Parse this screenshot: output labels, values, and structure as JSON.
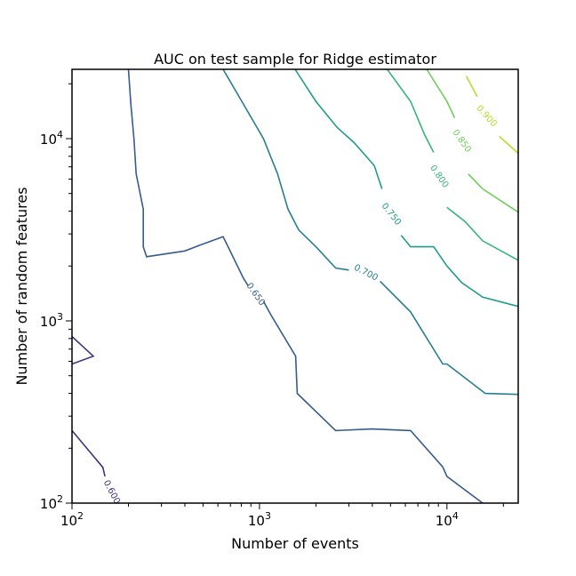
{
  "chart_data": {
    "type": "contour",
    "title": "AUC on test sample for Ridge estimator",
    "xlabel": "Number of events",
    "ylabel": "Number of random features",
    "xscale": "log",
    "yscale": "log",
    "xlim": [
      100,
      24000
    ],
    "ylim": [
      100,
      24000
    ],
    "x_ticks": [
      {
        "base": "10",
        "exp": "2"
      },
      {
        "base": "10",
        "exp": "3"
      },
      {
        "base": "10",
        "exp": "4"
      }
    ],
    "y_ticks": [
      {
        "base": "10",
        "exp": "2"
      },
      {
        "base": "10",
        "exp": "3"
      },
      {
        "base": "10",
        "exp": "4"
      }
    ],
    "grid": false,
    "levels": [
      {
        "level": "0.600",
        "color": "#46327e",
        "paths": [
          [
            [
              100,
              820
            ],
            [
              130,
              640
            ],
            [
              100,
              580
            ]
          ],
          [
            [
              100,
              250
            ],
            [
              146,
              157
            ],
            [
              150,
              140
            ]
          ]
        ],
        "label": {
          "x": 163,
          "y": 115,
          "text": "0.600",
          "angle": 62
        }
      },
      {
        "level": "0.650",
        "color": "#365c8d",
        "paths": [
          [
            [
              200,
              24000
            ],
            [
              206,
              15500
            ],
            [
              214,
              10000
            ],
            [
              220,
              6400
            ],
            [
              240,
              4100
            ],
            [
              240,
              2550
            ],
            [
              250,
              2250
            ],
            [
              400,
              2420
            ],
            [
              480,
              2600
            ],
            [
              640,
              2900
            ],
            [
              820,
              1720
            ],
            [
              870,
              1560
            ]
          ],
          [
            [
              1050,
              1280
            ],
            [
              1150,
              1080
            ],
            [
              1560,
              640
            ],
            [
              1590,
              400
            ],
            [
              2550,
              250
            ],
            [
              4000,
              255
            ],
            [
              6400,
              250
            ],
            [
              9500,
              158
            ],
            [
              10000,
              140
            ],
            [
              15500,
              100
            ]
          ]
        ],
        "label": {
          "x": 955,
          "y": 1400,
          "text": "0.650",
          "angle": 55
        }
      },
      {
        "level": "0.700",
        "color": "#277f8e",
        "paths": [
          [
            [
              640,
              24000
            ],
            [
              820,
              15500
            ],
            [
              1050,
              10000
            ],
            [
              1250,
              6400
            ],
            [
              1420,
              4100
            ],
            [
              1620,
              3150
            ],
            [
              2000,
              2550
            ],
            [
              2550,
              1950
            ],
            [
              3000,
              1900
            ]
          ],
          [
            [
              4400,
              1650
            ],
            [
              6400,
              1120
            ],
            [
              9500,
              580
            ],
            [
              10000,
              580
            ],
            [
              16000,
              400
            ],
            [
              24000,
              395
            ]
          ]
        ],
        "label": {
          "x": 3700,
          "y": 1840,
          "text": "0.700",
          "angle": 27
        }
      },
      {
        "level": "0.750",
        "color": "#1f9e89",
        "paths": [
          [
            [
              1550,
              24000
            ],
            [
              2000,
              16000
            ],
            [
              2600,
              11500
            ],
            [
              3200,
              9500
            ],
            [
              4100,
              7100
            ],
            [
              4500,
              5300
            ]
          ],
          [
            [
              5700,
              2950
            ],
            [
              6400,
              2550
            ],
            [
              8500,
              2550
            ],
            [
              10000,
              2000
            ],
            [
              12000,
              1620
            ],
            [
              15500,
              1350
            ],
            [
              24000,
              1200
            ]
          ]
        ],
        "label": {
          "x": 5050,
          "y": 3850,
          "text": "0.750",
          "angle": 52
        }
      },
      {
        "level": "0.800",
        "color": "#35b779",
        "paths": [
          [
            [
              4800,
              24000
            ],
            [
              6400,
              16000
            ],
            [
              7600,
              10500
            ],
            [
              8500,
              8400
            ]
          ],
          [
            [
              10000,
              4200
            ],
            [
              12500,
              3500
            ],
            [
              15500,
              2750
            ],
            [
              24000,
              2150
            ]
          ]
        ],
        "label": {
          "x": 9100,
          "y": 6200,
          "text": "0.800",
          "angle": 55
        }
      },
      {
        "level": "0.850",
        "color": "#6ece58",
        "paths": [
          [
            [
              7800,
              24000
            ],
            [
              10000,
              16000
            ],
            [
              11000,
              13000
            ]
          ],
          [
            [
              13000,
              6400
            ],
            [
              15500,
              5300
            ],
            [
              24000,
              3950
            ]
          ]
        ],
        "label": {
          "x": 12000,
          "y": 9700,
          "text": "0.850",
          "angle": 55
        }
      },
      {
        "level": "0.900",
        "color": "#b5de2b",
        "paths": [
          [
            [
              12700,
              22000
            ],
            [
              14500,
              17000
            ]
          ],
          [
            [
              19000,
              10300
            ],
            [
              24000,
              8300
            ]
          ]
        ],
        "label": {
          "x": 16300,
          "y": 13300,
          "text": "0.900",
          "angle": 48
        }
      }
    ]
  }
}
